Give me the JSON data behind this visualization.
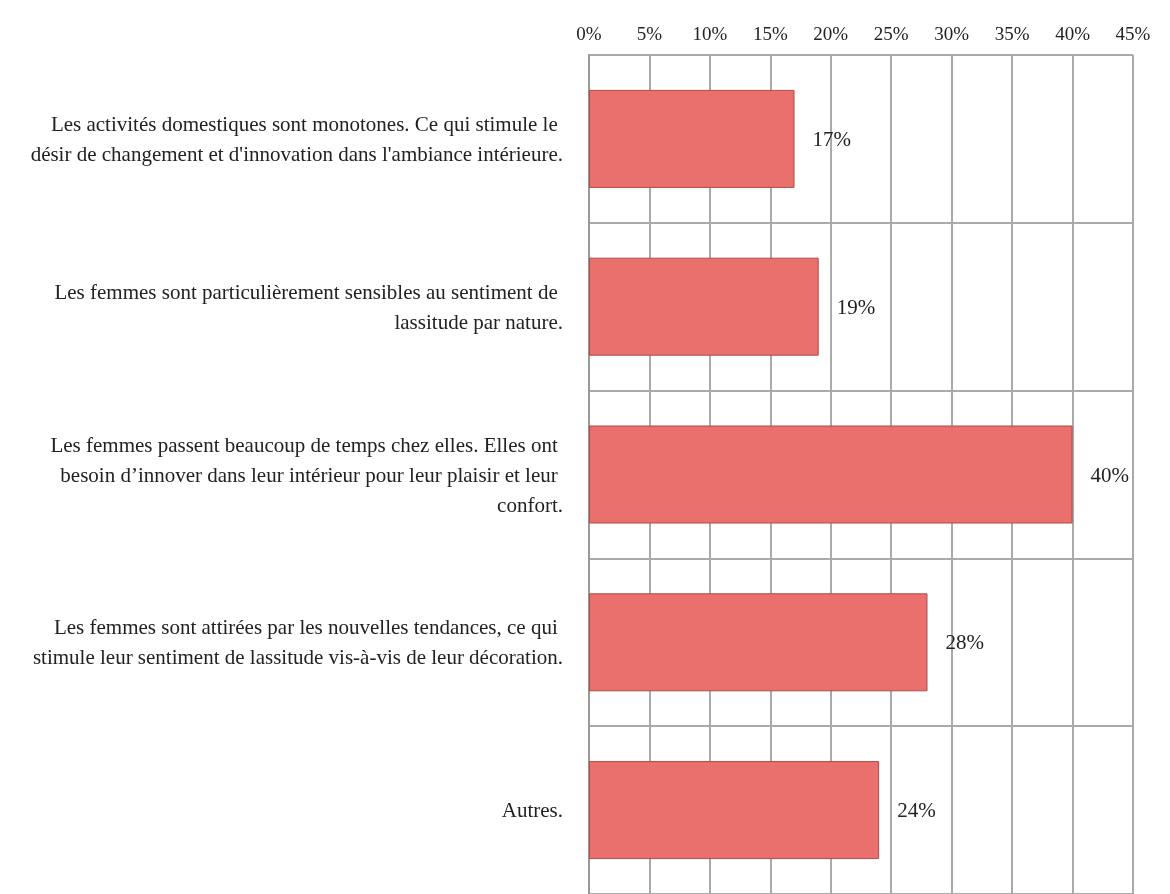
{
  "chart_data": {
    "type": "bar",
    "orientation": "horizontal",
    "categories": [
      "Les activités domestiques sont monotones. Ce qui stimule le désir de changement et d'innovation dans l'ambiance intérieure.",
      "Les femmes sont particulièrement sensibles au sentiment de lassitude par nature.",
      "Les femmes passent beaucoup de temps chez elles. Elles ont besoin d’innover dans leur intérieur pour leur plaisir et leur confort.",
      "Les femmes sont attirées par les nouvelles tendances, ce qui stimule leur sentiment de lassitude vis-à-vis de leur décoration.",
      "Autres."
    ],
    "values": [
      17,
      19,
      40,
      28,
      24
    ],
    "value_labels": [
      "17%",
      "19%",
      "40%",
      "28%",
      "24%"
    ],
    "color": "#e9706c",
    "xlim": [
      0,
      45
    ],
    "xticks": [
      {
        "value": 0,
        "label": "0%"
      },
      {
        "value": 5,
        "label": "5%"
      },
      {
        "value": 10,
        "label": "10%"
      },
      {
        "value": 15,
        "label": "15%"
      },
      {
        "value": 20,
        "label": "20%"
      },
      {
        "value": 25,
        "label": "25%"
      },
      {
        "value": 30,
        "label": "30%"
      },
      {
        "value": 35,
        "label": "35%"
      },
      {
        "value": 40,
        "label": "40%"
      },
      {
        "value": 45,
        "label": "45%"
      }
    ],
    "grid": true
  }
}
